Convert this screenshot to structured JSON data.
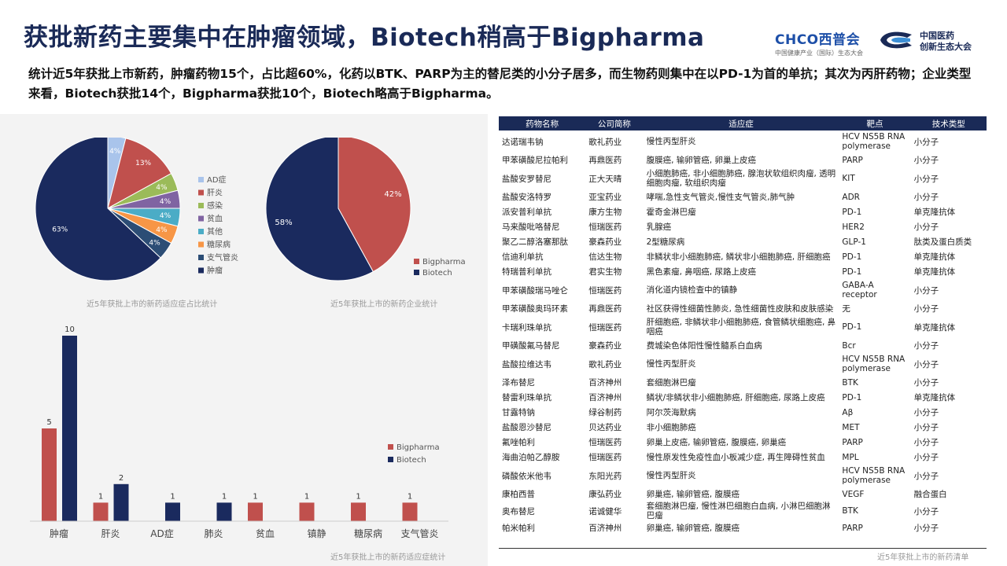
{
  "title": "获批新药主要集中在肿瘤领域，Biotech稍高于Bigpharma",
  "logos": {
    "logo1_brand": "CHCO西普会",
    "logo1_sub": "中国健康产业（国际）生态大会",
    "logo2_line1": "中国医药",
    "logo2_line2": "创新生态大会"
  },
  "summary": "统计近5年获批上市新药，肿瘤药物15个，占比超60%，化药以BTK、PARP为主的替尼类的小分子居多，而生物药则集中在以PD-1为首的单抗；其次为丙肝药物；企业类型来看，Biotech获批14个，Bigpharma获批10个，Biotech略高于Bigpharma。",
  "captions": {
    "pie1": "近5年获批上市的新药适应症占比统计",
    "pie2": "近5年获批上市的新药企业统计",
    "bar": "近5年获批上市的新药适应症统计",
    "table": "近5年获批上市的新药清单"
  },
  "colors": {
    "navy": "#1a2a5e",
    "red": "#c0504d",
    "green": "#9bbb59",
    "purple": "#8064a2",
    "teal": "#4bacc6",
    "orange": "#f79646",
    "slate": "#2c4d75",
    "lightblue": "#a9c4eb"
  },
  "chart_data": [
    {
      "type": "pie",
      "title": "近5年获批上市的新药适应症占比统计",
      "categories": [
        "AD症",
        "肝炎",
        "感染",
        "贫血",
        "其他",
        "糖尿病",
        "支气管炎",
        "肿瘤"
      ],
      "values": [
        4,
        13,
        4,
        4,
        4,
        4,
        4,
        63
      ],
      "labels": [
        "4%",
        "13%",
        "4%",
        "4%",
        "4%",
        "4%",
        "4%",
        "63%"
      ],
      "legend": "right"
    },
    {
      "type": "pie",
      "title": "近5年获批上市的新药企业统计",
      "categories": [
        "Bigpharma",
        "Biotech"
      ],
      "values": [
        42,
        58
      ],
      "labels": [
        "42%",
        "58%"
      ],
      "legend": "bottom-right"
    },
    {
      "type": "bar",
      "title": "近5年获批上市的新药适应症统计",
      "categories": [
        "肿瘤",
        "肝炎",
        "AD症",
        "肺炎",
        "贫血",
        "镇静",
        "糖尿病",
        "支气管炎"
      ],
      "series": [
        {
          "name": "Bigpharma",
          "values": [
            5,
            1,
            null,
            null,
            1,
            1,
            1,
            1
          ]
        },
        {
          "name": "Biotech",
          "values": [
            10,
            2,
            1,
            1,
            null,
            null,
            null,
            null
          ]
        }
      ],
      "ylim": [
        0,
        10
      ],
      "grid": false,
      "legend": "right"
    },
    {
      "type": "table",
      "title": "近5年获批上市的新药清单",
      "columns": [
        "药物名称",
        "公司简称",
        "适应症",
        "靶点",
        "技术类型"
      ],
      "rows": [
        [
          "达诺瑞韦钠",
          "歌礼药业",
          "慢性丙型肝炎",
          "HCV NS5B RNA polymerase",
          "小分子"
        ],
        [
          "甲苯磺酸尼拉帕利",
          "再鼎医药",
          "腹膜癌, 输卵管癌, 卵巢上皮癌",
          "PARP",
          "小分子"
        ],
        [
          "盐酸安罗替尼",
          "正大天晴",
          "小细胞肺癌, 非小细胞肺癌, 腺泡状软组织肉瘤, 透明细胞肉瘤, 软组织肉瘤",
          "KIT",
          "小分子"
        ],
        [
          "盐酸安洛特罗",
          "亚宝药业",
          "哮喘,急性支气管炎,慢性支气管炎,肺气肿",
          "ADR",
          "小分子"
        ],
        [
          "派安普利单抗",
          "康方生物",
          "霍奇金淋巴瘤",
          "PD-1",
          "单克隆抗体"
        ],
        [
          "马来酸吡咯替尼",
          "恒瑞医药",
          "乳腺癌",
          "HER2",
          "小分子"
        ],
        [
          "聚乙二醇洛塞那肽",
          "豪森药业",
          "2型糖尿病",
          "GLP-1",
          "肽类及蛋白质类"
        ],
        [
          "信迪利单抗",
          "信达生物",
          "非鳞状非小细胞肺癌, 鳞状非小细胞肺癌, 肝细胞癌",
          "PD-1",
          "单克隆抗体"
        ],
        [
          "特瑞普利单抗",
          "君实生物",
          "黑色素瘤, 鼻咽癌, 尿路上皮癌",
          "PD-1",
          "单克隆抗体"
        ],
        [
          "甲苯磺酸瑞马唑仑",
          "恒瑞医药",
          "消化道内镜检查中的镇静",
          "GABA-A receptor",
          "小分子"
        ],
        [
          "甲苯磺酸奥玛环素",
          "再鼎医药",
          "社区获得性细菌性肺炎, 急性细菌性皮肤和皮肤感染",
          "无",
          "小分子"
        ],
        [
          "卡瑞利珠单抗",
          "恒瑞医药",
          "肝细胞癌, 非鳞状非小细胞肺癌, 食管鳞状细胞癌, 鼻咽癌",
          "PD-1",
          "单克隆抗体"
        ],
        [
          "甲磺酸氟马替尼",
          "豪森药业",
          "费城染色体阳性慢性髓系白血病",
          "Bcr",
          "小分子"
        ],
        [
          "盐酸拉维达韦",
          "歌礼药业",
          "慢性丙型肝炎",
          "HCV NS5B RNA polymerase",
          "小分子"
        ],
        [
          "泽布替尼",
          "百济神州",
          "套细胞淋巴瘤",
          "BTK",
          "小分子"
        ],
        [
          "替雷利珠单抗",
          "百济神州",
          "鳞状/非鳞状非小细胞肺癌, 肝细胞癌, 尿路上皮癌",
          "PD-1",
          "单克隆抗体"
        ],
        [
          "甘露特钠",
          "绿谷制药",
          "阿尔茨海默病",
          "Aβ",
          "小分子"
        ],
        [
          "盐酸恩沙替尼",
          "贝达药业",
          "非小细胞肺癌",
          "MET",
          "小分子"
        ],
        [
          "氟唑帕利",
          "恒瑞医药",
          "卵巢上皮癌, 输卵管癌, 腹膜癌, 卵巢癌",
          "PARP",
          "小分子"
        ],
        [
          "海曲泊帕乙醇胺",
          "恒瑞医药",
          "慢性原发性免疫性血小板减少症, 再生障碍性贫血",
          "MPL",
          "小分子"
        ],
        [
          "磷酸依米他韦",
          "东阳光药",
          "慢性丙型肝炎",
          "HCV NS5B RNA polymerase",
          "小分子"
        ],
        [
          "康柏西普",
          "康弘药业",
          "卵巢癌, 输卵管癌, 腹膜癌",
          "VEGF",
          "融合蛋白"
        ],
        [
          "奥布替尼",
          "诺诚健华",
          "套细胞淋巴瘤, 慢性淋巴细胞白血病, 小淋巴细胞淋巴瘤",
          "BTK",
          "小分子"
        ],
        [
          "帕米帕利",
          "百济神州",
          "卵巢癌, 输卵管癌, 腹膜癌",
          "PARP",
          "小分子"
        ]
      ]
    }
  ]
}
